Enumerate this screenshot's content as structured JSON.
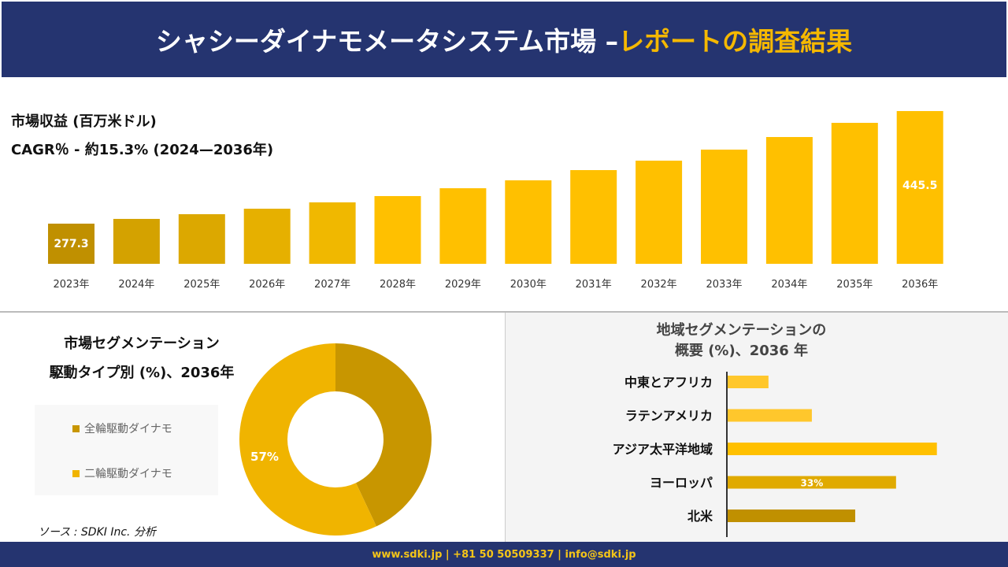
{
  "header": {
    "title": "シャシーダイナモメータシステム市場 –",
    "title_accent": "レポートの調査結果"
  },
  "revenue": {
    "title": "市場収益 (百万米ドル)",
    "cagr": "CAGR％ - 約15.3% (2024—2036年)"
  },
  "chart_data": [
    {
      "type": "bar",
      "title": "市場収益 (百万米ドル)",
      "categories": [
        "2023年",
        "2024年",
        "2025年",
        "2026年",
        "2027年",
        "2028年",
        "2029年",
        "2030年",
        "2031年",
        "2032年",
        "2033年",
        "2034年",
        "2035年",
        "2036年"
      ],
      "values": [
        277.3,
        284.4,
        291.4,
        299.6,
        309.1,
        318.5,
        330.2,
        342.0,
        357.3,
        371.4,
        387.9,
        406.7,
        427.9,
        445.5
      ],
      "data_labels": {
        "0": "277.3",
        "13": "445.5"
      },
      "colors": [
        "#c09000",
        "#d4a200",
        "#dca800",
        "#e6b000",
        "#f0b800",
        "#ffc000",
        "#ffc000",
        "#ffc000",
        "#ffc000",
        "#ffc000",
        "#ffc000",
        "#ffc000",
        "#ffc000",
        "#ffc000"
      ]
    },
    {
      "type": "pie",
      "title": "市場セグメンテーション 駆動タイプ別 (%)、2036年",
      "labels": [
        "全輪駆動ダイナモ",
        "二輪駆動ダイナモ"
      ],
      "values": [
        43,
        57
      ],
      "colors": [
        "#c89600",
        "#f0b400"
      ],
      "data_labels": {
        "1": "57%"
      }
    },
    {
      "type": "bar",
      "orientation": "horizontal",
      "title": "地域セグメンテーションの 概要 (%)、2036 年",
      "categories": [
        "中東とアフリカ",
        "ラテンアメリカ",
        "アジア太平洋地域",
        "ヨーロッパ",
        "北米"
      ],
      "values": [
        8,
        16.5,
        41,
        33,
        25
      ],
      "data_labels": {
        "3": "33%"
      },
      "colors": [
        "#ffc72c",
        "#ffc72c",
        "#ffc000",
        "#e0aa00",
        "#c09000"
      ]
    }
  ],
  "segment": {
    "title1": "市場セグメンテーション",
    "title2": "駆動タイプ別 (%)、2036年",
    "legend": [
      "全輪駆動ダイナモ",
      "二輪駆動ダイナモ"
    ],
    "source": "ソース : SDKI Inc. 分析"
  },
  "region": {
    "title1": "地域セグメンテーションの",
    "title2": "概要 (%)、2036 年"
  },
  "footer": {
    "text": "www.sdki.jp | +81 50 50509337 | info@sdki.jp"
  }
}
